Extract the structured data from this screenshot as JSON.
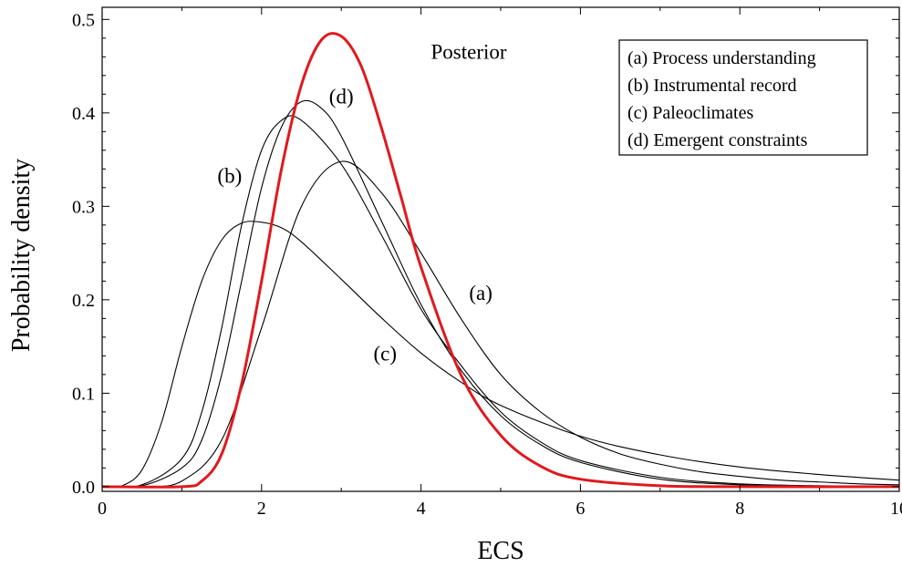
{
  "chart_data": {
    "type": "line",
    "title": "",
    "xlabel": "ECS",
    "ylabel": "Probability density",
    "xlim": [
      0,
      10
    ],
    "ylim": [
      -0.005,
      0.513
    ],
    "xticks": [
      0,
      2,
      4,
      6,
      8,
      10
    ],
    "xtick_labels": [
      "0",
      "2",
      "4",
      "6",
      "8",
      "10"
    ],
    "yticks": [
      0.0,
      0.1,
      0.2,
      0.3,
      0.4,
      0.5
    ],
    "ytick_labels": [
      "0.0",
      "0.1",
      "0.2",
      "0.3",
      "0.4",
      "0.5"
    ],
    "grid": false,
    "legend_position": "top-right",
    "legend": [
      "(a) Process understanding",
      "(b) Instrumental record",
      "(c) Paleoclimates",
      "(d) Emergent constraints"
    ],
    "series": [
      {
        "name": "(a)",
        "color": "#000000",
        "x": [
          0,
          0.5,
          1.0,
          1.5,
          2.0,
          2.5,
          3.0,
          3.5,
          4.0,
          4.5,
          5.0,
          5.5,
          6.0,
          6.5,
          7.0,
          7.5,
          8.0,
          8.5,
          9.0,
          9.5,
          10.0
        ],
        "y": [
          0.0,
          0.0,
          0.006,
          0.05,
          0.17,
          0.3,
          0.348,
          0.315,
          0.25,
          0.18,
          0.12,
          0.08,
          0.053,
          0.035,
          0.024,
          0.016,
          0.011,
          0.007,
          0.005,
          0.003,
          0.002
        ]
      },
      {
        "name": "(b)",
        "color": "#000000",
        "x": [
          0,
          0.5,
          1.0,
          1.25,
          1.5,
          1.75,
          2.0,
          2.25,
          2.5,
          3.0,
          3.5,
          4.0,
          4.5,
          5.0,
          5.5,
          6.0,
          7.0,
          8.0,
          9.0,
          10.0
        ],
        "y": [
          0.0,
          0.002,
          0.03,
          0.08,
          0.17,
          0.28,
          0.36,
          0.392,
          0.392,
          0.345,
          0.27,
          0.19,
          0.13,
          0.08,
          0.048,
          0.028,
          0.01,
          0.003,
          0.001,
          0.0
        ]
      },
      {
        "name": "(c)",
        "color": "#000000",
        "x": [
          0,
          0.25,
          0.5,
          0.75,
          1.0,
          1.25,
          1.5,
          1.75,
          2.0,
          2.25,
          2.5,
          3.0,
          3.5,
          4.0,
          4.5,
          5.0,
          6.0,
          7.0,
          8.0,
          9.0,
          10.0
        ],
        "y": [
          0.0,
          0.001,
          0.018,
          0.07,
          0.15,
          0.22,
          0.264,
          0.282,
          0.283,
          0.277,
          0.262,
          0.222,
          0.181,
          0.143,
          0.112,
          0.087,
          0.054,
          0.034,
          0.021,
          0.013,
          0.007
        ]
      },
      {
        "name": "(d)",
        "color": "#000000",
        "x": [
          0,
          0.5,
          1.0,
          1.25,
          1.5,
          1.75,
          2.0,
          2.25,
          2.5,
          2.75,
          3.0,
          3.5,
          4.0,
          4.5,
          5.0,
          5.5,
          6.0,
          7.0,
          8.0,
          9.0,
          10.0
        ],
        "y": [
          0.0,
          0.001,
          0.02,
          0.05,
          0.12,
          0.22,
          0.32,
          0.385,
          0.412,
          0.405,
          0.375,
          0.285,
          0.195,
          0.125,
          0.076,
          0.045,
          0.026,
          0.008,
          0.002,
          0.0,
          0.0
        ]
      },
      {
        "name": "Posterior",
        "color": "#e0191f",
        "x": [
          0,
          1.0,
          1.25,
          1.5,
          1.75,
          2.0,
          2.25,
          2.5,
          2.75,
          3.0,
          3.25,
          3.5,
          3.75,
          4.0,
          4.5,
          5.0,
          5.5,
          6.0,
          7.0,
          8.0,
          10.0
        ],
        "y": [
          0.0,
          0.0,
          0.006,
          0.035,
          0.11,
          0.22,
          0.34,
          0.43,
          0.478,
          0.482,
          0.45,
          0.385,
          0.31,
          0.235,
          0.12,
          0.055,
          0.022,
          0.008,
          0.001,
          0.0,
          0.0
        ]
      }
    ],
    "annotations": [
      {
        "text": "Posterior",
        "x": 4.6,
        "y": 0.458,
        "color": "#000000"
      },
      {
        "text": "(d)",
        "x": 3.0,
        "y": 0.41,
        "color": "#000000"
      },
      {
        "text": "(b)",
        "x": 1.6,
        "y": 0.325,
        "color": "#000000"
      },
      {
        "text": "(a)",
        "x": 4.75,
        "y": 0.2,
        "color": "#000000"
      },
      {
        "text": "(c)",
        "x": 3.55,
        "y": 0.135,
        "color": "#000000"
      }
    ]
  }
}
